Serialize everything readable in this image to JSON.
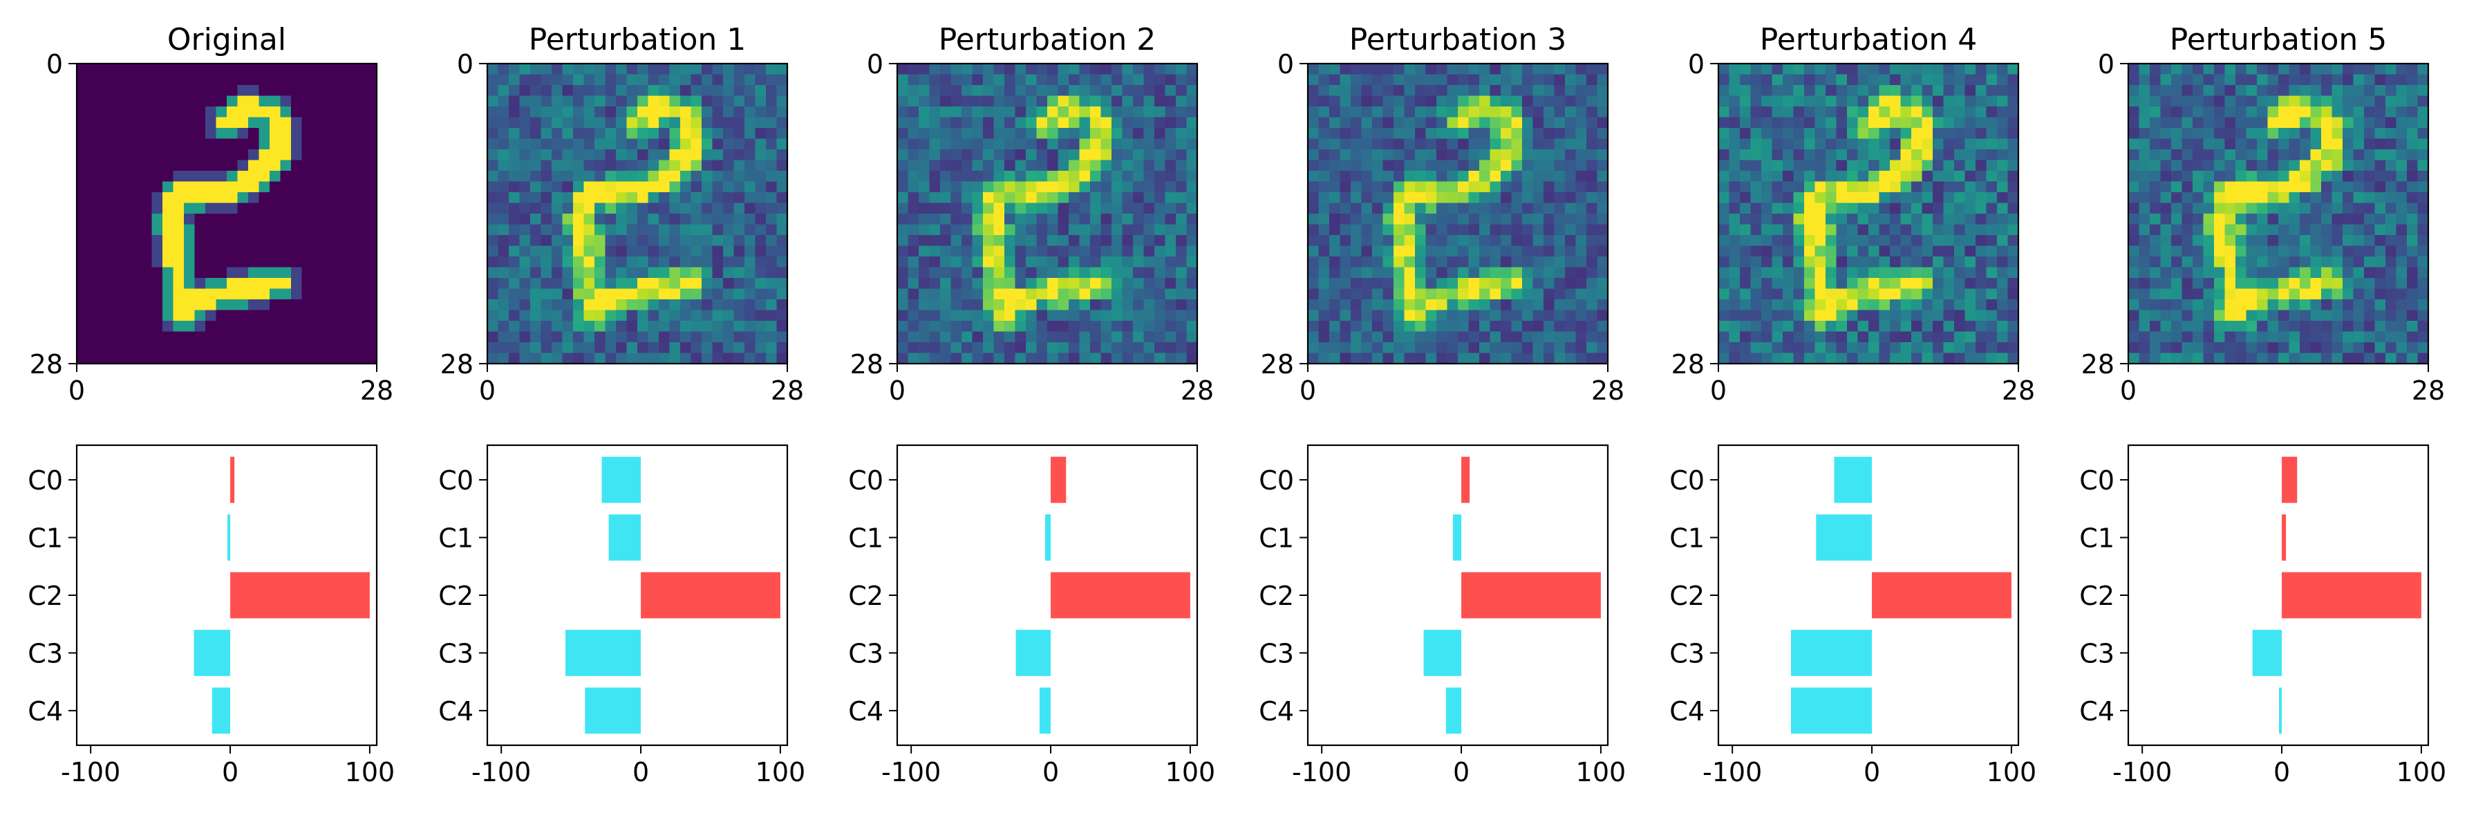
{
  "chart_data": [
    {
      "type": "heatmap",
      "title": "Original",
      "xlim": [
        0,
        28
      ],
      "ylim": [
        28,
        0
      ],
      "x_ticks": [
        "0",
        "28"
      ],
      "y_ticks": [
        "0",
        "28"
      ],
      "colormap": "viridis",
      "noise_level": 0.0
    },
    {
      "type": "heatmap",
      "title": "Perturbation 1",
      "xlim": [
        0,
        28
      ],
      "ylim": [
        28,
        0
      ],
      "x_ticks": [
        "0",
        "28"
      ],
      "y_ticks": [
        "0",
        "28"
      ],
      "colormap": "viridis",
      "noise_level": 0.35
    },
    {
      "type": "heatmap",
      "title": "Perturbation 2",
      "xlim": [
        0,
        28
      ],
      "ylim": [
        28,
        0
      ],
      "x_ticks": [
        "0",
        "28"
      ],
      "y_ticks": [
        "0",
        "28"
      ],
      "colormap": "viridis",
      "noise_level": 0.35
    },
    {
      "type": "heatmap",
      "title": "Perturbation 3",
      "xlim": [
        0,
        28
      ],
      "ylim": [
        28,
        0
      ],
      "x_ticks": [
        "0",
        "28"
      ],
      "y_ticks": [
        "0",
        "28"
      ],
      "colormap": "viridis",
      "noise_level": 0.3
    },
    {
      "type": "heatmap",
      "title": "Perturbation 4",
      "xlim": [
        0,
        28
      ],
      "ylim": [
        28,
        0
      ],
      "x_ticks": [
        "0",
        "28"
      ],
      "y_ticks": [
        "0",
        "28"
      ],
      "colormap": "viridis",
      "noise_level": 0.4
    },
    {
      "type": "heatmap",
      "title": "Perturbation 5",
      "xlim": [
        0,
        28
      ],
      "ylim": [
        28,
        0
      ],
      "x_ticks": [
        "0",
        "28"
      ],
      "y_ticks": [
        "0",
        "28"
      ],
      "colormap": "viridis",
      "noise_level": 0.38
    },
    {
      "type": "bar",
      "orientation": "horizontal",
      "categories": [
        "C0",
        "C1",
        "C2",
        "C3",
        "C4"
      ],
      "values": [
        3,
        -2,
        100,
        -26,
        -13
      ],
      "xlim": [
        -110,
        105
      ],
      "x_ticks": [
        "-100",
        "0",
        "100"
      ],
      "positive_color": "#ff5050",
      "negative_color": "#40e5f4"
    },
    {
      "type": "bar",
      "orientation": "horizontal",
      "categories": [
        "C0",
        "C1",
        "C2",
        "C3",
        "C4"
      ],
      "values": [
        -28,
        -23,
        100,
        -54,
        -40
      ],
      "xlim": [
        -110,
        105
      ],
      "x_ticks": [
        "-100",
        "0",
        "100"
      ],
      "positive_color": "#ff5050",
      "negative_color": "#40e5f4"
    },
    {
      "type": "bar",
      "orientation": "horizontal",
      "categories": [
        "C0",
        "C1",
        "C2",
        "C3",
        "C4"
      ],
      "values": [
        11,
        -4,
        100,
        -25,
        -8
      ],
      "xlim": [
        -110,
        105
      ],
      "x_ticks": [
        "-100",
        "0",
        "100"
      ],
      "positive_color": "#ff5050",
      "negative_color": "#40e5f4"
    },
    {
      "type": "bar",
      "orientation": "horizontal",
      "categories": [
        "C0",
        "C1",
        "C2",
        "C3",
        "C4"
      ],
      "values": [
        6,
        -6,
        100,
        -27,
        -11
      ],
      "xlim": [
        -110,
        105
      ],
      "x_ticks": [
        "-100",
        "0",
        "100"
      ],
      "positive_color": "#ff5050",
      "negative_color": "#40e5f4"
    },
    {
      "type": "bar",
      "orientation": "horizontal",
      "categories": [
        "C0",
        "C1",
        "C2",
        "C3",
        "C4"
      ],
      "values": [
        -27,
        -40,
        100,
        -58,
        -58
      ],
      "xlim": [
        -110,
        105
      ],
      "x_ticks": [
        "-100",
        "0",
        "100"
      ],
      "positive_color": "#ff5050",
      "negative_color": "#40e5f4"
    },
    {
      "type": "bar",
      "orientation": "horizontal",
      "categories": [
        "C0",
        "C1",
        "C2",
        "C3",
        "C4"
      ],
      "values": [
        11,
        3,
        100,
        -21,
        -2
      ],
      "xlim": [
        -110,
        105
      ],
      "x_ticks": [
        "-100",
        "0",
        "100"
      ],
      "positive_color": "#ff5050",
      "negative_color": "#40e5f4"
    }
  ]
}
